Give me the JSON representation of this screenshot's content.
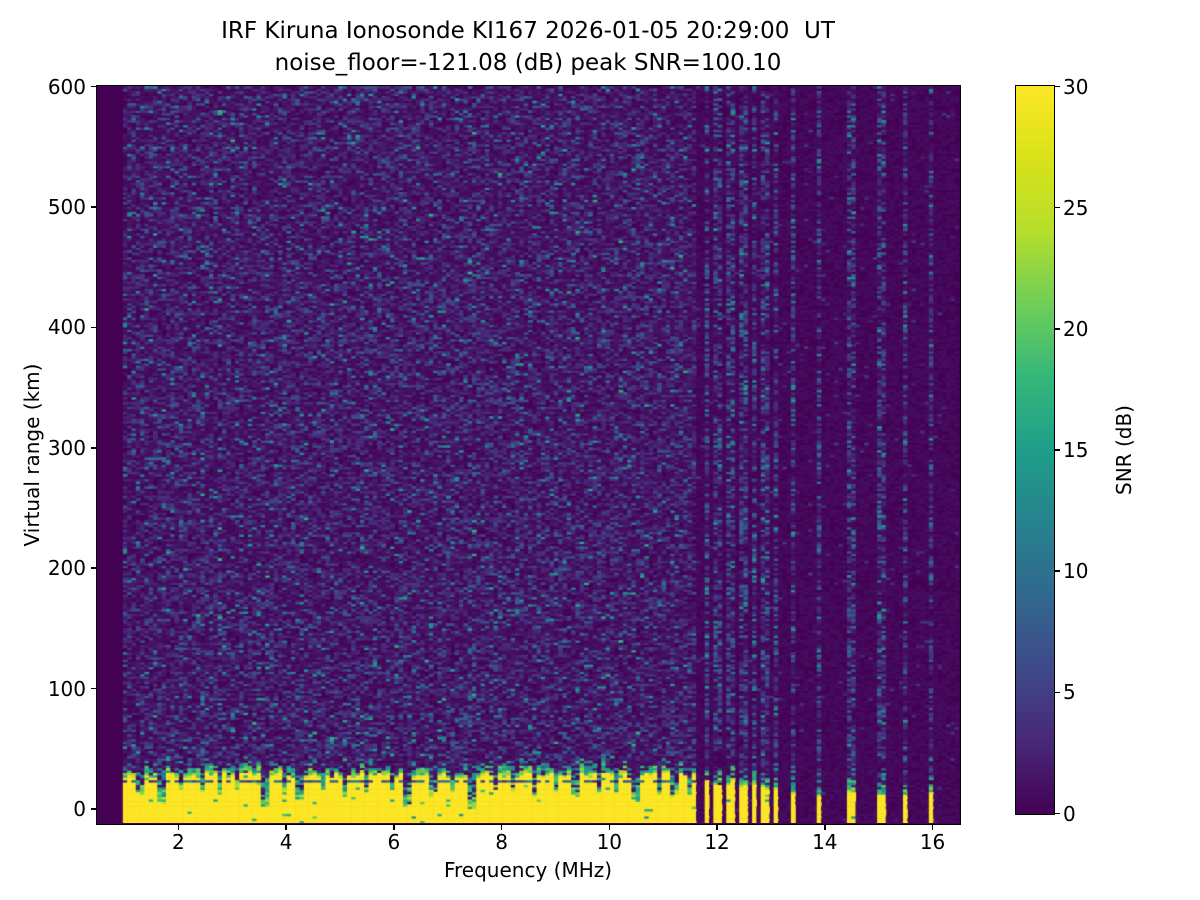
{
  "figure": {
    "title_line1": "IRF Kiruna Ionosonde KI167 2026-01-05 20:29:00  UT",
    "title_line2": "noise_floor=-121.08 (dB) peak SNR=100.10",
    "background_color": "#ffffff"
  },
  "chart_data": {
    "type": "heatmap",
    "title": "IRF Kiruna Ionosonde KI167 2026-01-05 20:29:00  UT",
    "subtitle": "noise_floor=-121.08 (dB) peak SNR=100.10",
    "station": "KI167",
    "timestamp_ut": "2026-01-05 20:29:00",
    "noise_floor_db": -121.08,
    "peak_snr_db": 100.1,
    "xlabel": "Frequency (MHz)",
    "ylabel": "Virtual range (km)",
    "colorbar_label": "SNR (dB)",
    "colormap": "viridis",
    "colormap_stops": [
      "#440154",
      "#482878",
      "#3e4a89",
      "#31688e",
      "#26828e",
      "#1f9e89",
      "#35b779",
      "#6ece58",
      "#b5de2b",
      "#d8e219",
      "#fde725"
    ],
    "xlim": [
      0.5,
      16.5
    ],
    "ylim": [
      -12,
      600
    ],
    "clim": [
      0,
      30
    ],
    "xticks": [
      2,
      4,
      6,
      8,
      10,
      12,
      14,
      16
    ],
    "yticks": [
      0,
      100,
      200,
      300,
      400,
      500,
      600
    ],
    "colorbar_ticks": [
      0,
      5,
      10,
      15,
      20,
      25,
      30
    ],
    "grid": false,
    "features": {
      "description": "Ionogram: dark viridis noise speckle field; saturated ~30 dB ground-clutter band from bottom of plot up to ~28 km virtual range; continuous sweep 0.95-11.64 MHz, discrete gated frequency stripes above 11.64 MHz; dark range-gate line inside clutter band at ~23 km; notches in clutter band at interference-protected frequencies.",
      "data_min_freq_mhz": 0.95,
      "continuous_max_freq_mhz": 11.64,
      "clutter_solid_top_km": 28,
      "clutter_speckle_extra_km": 12,
      "clutter_gate_line_km": 23,
      "noise_speckle_db_range": [
        0,
        15
      ],
      "rfi_columns_mhz": [
        2.8,
        3.65,
        5.5,
        7.45,
        9.4,
        10.5
      ],
      "notch_format": [
        "freq_mhz",
        "clutter_top_km",
        "width_mhz"
      ],
      "notches": [
        [
          1.3,
          14,
          0.1
        ],
        [
          1.68,
          6,
          0.14
        ],
        [
          2.05,
          16,
          0.1
        ],
        [
          2.45,
          15,
          0.08
        ],
        [
          2.78,
          10,
          0.12
        ],
        [
          3.1,
          16,
          0.08
        ],
        [
          3.62,
          3,
          0.16
        ],
        [
          4.02,
          14,
          0.08
        ],
        [
          4.28,
          9,
          0.12
        ],
        [
          4.72,
          15,
          0.08
        ],
        [
          5.08,
          12,
          0.1
        ],
        [
          5.52,
          14,
          0.1
        ],
        [
          5.95,
          16,
          0.08
        ],
        [
          6.28,
          4,
          0.14
        ],
        [
          6.75,
          12,
          0.1
        ],
        [
          7.1,
          15,
          0.08
        ],
        [
          7.45,
          2,
          0.14
        ],
        [
          7.88,
          15,
          0.08
        ],
        [
          8.22,
          12,
          0.1
        ],
        [
          8.62,
          9,
          0.12
        ],
        [
          9.02,
          15,
          0.08
        ],
        [
          9.38,
          11,
          0.1
        ],
        [
          9.82,
          14,
          0.08
        ],
        [
          10.15,
          13,
          0.1
        ],
        [
          10.48,
          7,
          0.14
        ],
        [
          10.92,
          13,
          0.1
        ],
        [
          11.22,
          10,
          0.12
        ],
        [
          11.5,
          12,
          0.1
        ]
      ],
      "stripe_format": [
        "freq_mhz",
        "solid_top_km",
        "speckle_top_km",
        "width_mhz"
      ],
      "gated_stripes": [
        [
          11.82,
          24,
          42,
          0.16
        ],
        [
          12.02,
          20,
          38,
          0.13
        ],
        [
          12.28,
          22,
          40,
          0.12
        ],
        [
          12.48,
          18,
          34,
          0.12
        ],
        [
          12.68,
          20,
          36,
          0.12
        ],
        [
          12.88,
          16,
          34,
          0.12
        ],
        [
          13.08,
          18,
          32,
          0.12
        ],
        [
          13.42,
          14,
          30,
          0.1
        ],
        [
          13.92,
          12,
          28,
          0.1
        ],
        [
          14.5,
          13,
          30,
          0.1
        ],
        [
          15.05,
          11,
          26,
          0.1
        ],
        [
          15.5,
          13,
          28,
          0.1
        ],
        [
          16.0,
          15,
          32,
          0.1
        ]
      ]
    }
  }
}
